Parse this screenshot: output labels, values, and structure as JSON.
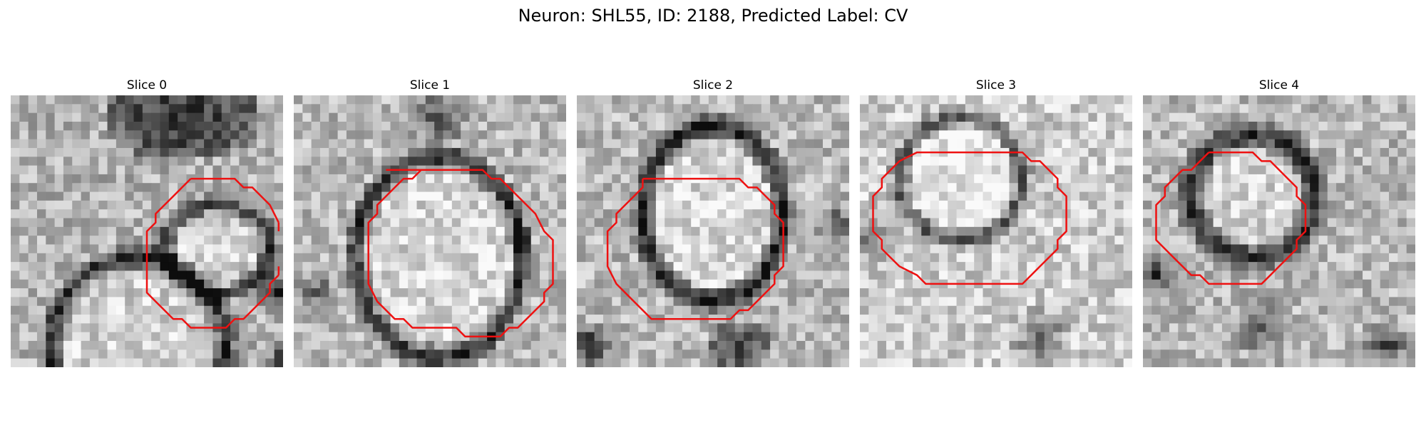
{
  "figure": {
    "title": "Neuron: SHL55, ID: 2188, Predicted Label: CV"
  },
  "panels": [
    {
      "title": "Slice 0"
    },
    {
      "title": "Slice 1"
    },
    {
      "title": "Slice 2"
    },
    {
      "title": "Slice 3"
    },
    {
      "title": "Slice 4"
    }
  ],
  "colors": {
    "contour": "#ee1111",
    "background": "#ffffff"
  }
}
